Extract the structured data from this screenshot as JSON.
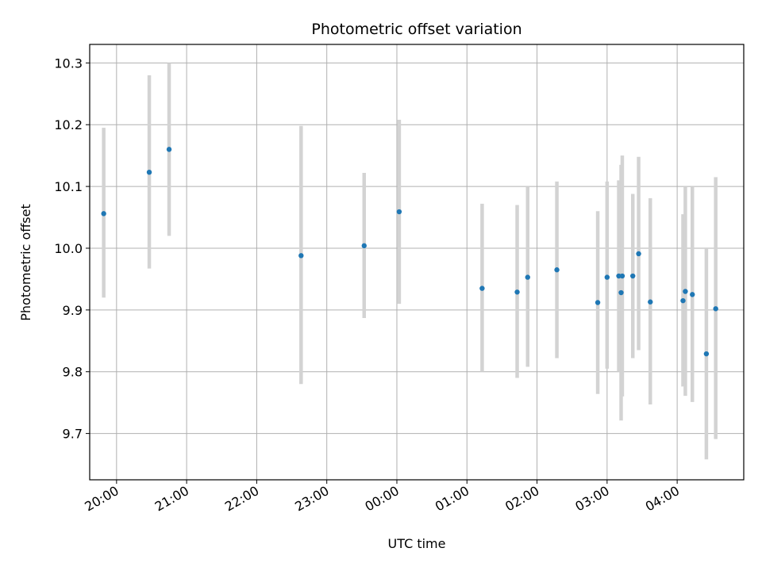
{
  "chart_data": {
    "type": "scatter",
    "title": "Photometric offset variation",
    "xlabel": "UTC time",
    "ylabel": "Photometric offset",
    "x_axis_kind": "time",
    "xlim": [
      "19:37",
      "04:57"
    ],
    "ylim": [
      9.625,
      10.33
    ],
    "x_ticks": [
      "20:00",
      "21:00",
      "22:00",
      "23:00",
      "00:00",
      "01:00",
      "02:00",
      "03:00",
      "04:00"
    ],
    "y_ticks": [
      "9.7",
      "9.8",
      "9.9",
      "10.0",
      "10.1",
      "10.2",
      "10.3"
    ],
    "grid": true,
    "point_color": "#1f77b4",
    "errorbar_color": "#d3d3d3",
    "points": [
      {
        "t": "19:49",
        "y": 10.056,
        "lo": 9.92,
        "hi": 10.195
      },
      {
        "t": "20:28",
        "y": 10.123,
        "lo": 9.967,
        "hi": 10.28
      },
      {
        "t": "20:45",
        "y": 10.16,
        "lo": 10.02,
        "hi": 10.3
      },
      {
        "t": "22:38",
        "y": 9.988,
        "lo": 9.78,
        "hi": 10.198
      },
      {
        "t": "23:32",
        "y": 10.004,
        "lo": 9.887,
        "hi": 10.122
      },
      {
        "t": "00:02",
        "y": 10.059,
        "lo": 9.91,
        "hi": 10.208
      },
      {
        "t": "01:13",
        "y": 9.935,
        "lo": 9.8,
        "hi": 10.072
      },
      {
        "t": "01:43",
        "y": 9.929,
        "lo": 9.79,
        "hi": 10.07
      },
      {
        "t": "01:52",
        "y": 9.953,
        "lo": 9.808,
        "hi": 10.1
      },
      {
        "t": "02:17",
        "y": 9.965,
        "lo": 9.822,
        "hi": 10.108
      },
      {
        "t": "02:52",
        "y": 9.912,
        "lo": 9.764,
        "hi": 10.06
      },
      {
        "t": "03:00",
        "y": 9.953,
        "lo": 9.805,
        "hi": 10.108
      },
      {
        "t": "03:10",
        "y": 9.955,
        "lo": 9.8,
        "hi": 10.11
      },
      {
        "t": "03:12",
        "y": 9.928,
        "lo": 9.721,
        "hi": 10.135
      },
      {
        "t": "03:13",
        "y": 9.955,
        "lo": 9.76,
        "hi": 10.15
      },
      {
        "t": "03:22",
        "y": 9.955,
        "lo": 9.822,
        "hi": 10.088
      },
      {
        "t": "03:27",
        "y": 9.991,
        "lo": 9.835,
        "hi": 10.148
      },
      {
        "t": "03:37",
        "y": 9.913,
        "lo": 9.747,
        "hi": 10.081
      },
      {
        "t": "04:05",
        "y": 9.915,
        "lo": 9.776,
        "hi": 10.055
      },
      {
        "t": "04:07",
        "y": 9.93,
        "lo": 9.761,
        "hi": 10.1
      },
      {
        "t": "04:13",
        "y": 9.925,
        "lo": 9.751,
        "hi": 10.1
      },
      {
        "t": "04:25",
        "y": 9.829,
        "lo": 9.658,
        "hi": 10.0
      },
      {
        "t": "04:33",
        "y": 9.902,
        "lo": 9.691,
        "hi": 10.115
      }
    ]
  }
}
